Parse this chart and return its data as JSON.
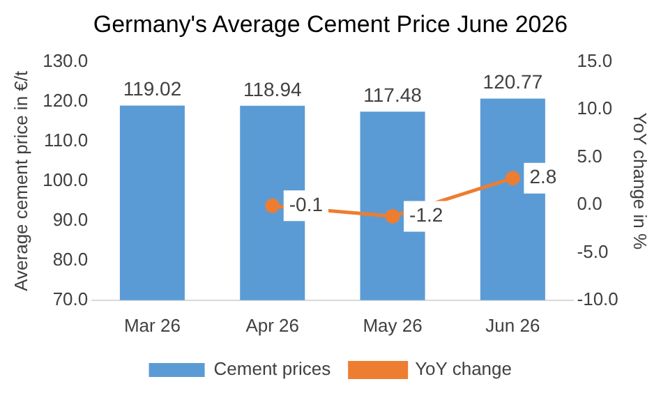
{
  "chart_data": {
    "type": "bar",
    "title": "Germany's Average Cement Price June 2026",
    "ylabel": "Average cement price in €/t",
    "y2label": "YoY change in %",
    "categories": [
      "Mar 26",
      "Apr 26",
      "May 26",
      "Jun 26"
    ],
    "series": [
      {
        "name": "Cement prices",
        "color": "#5b9bd5",
        "values": [
          119.02,
          118.94,
          117.48,
          120.77
        ]
      },
      {
        "name": "YoY change",
        "type": "line",
        "axis": "y2",
        "color": "#ed7d31",
        "values": [
          null,
          -0.1,
          -1.2,
          2.8
        ]
      }
    ],
    "ylim": [
      70,
      130
    ],
    "yticks": [
      {
        "value": 70,
        "label": "70.0"
      },
      {
        "value": 80,
        "label": "80.0"
      },
      {
        "value": 90,
        "label": "90.0"
      },
      {
        "value": 100,
        "label": "100.0"
      },
      {
        "value": 110,
        "label": "110.0"
      },
      {
        "value": 120,
        "label": "120.0"
      },
      {
        "value": 130,
        "label": "130.0"
      }
    ],
    "y2lim": [
      -10,
      15
    ],
    "y2ticks": [
      {
        "value": -10,
        "label": "-10.0"
      },
      {
        "value": -5,
        "label": "-5.0"
      },
      {
        "value": 0,
        "label": "0.0"
      },
      {
        "value": 5,
        "label": "5.0"
      },
      {
        "value": 10,
        "label": "10.0"
      },
      {
        "value": 15,
        "label": "15.0"
      }
    ],
    "data_labels": true,
    "legend": "bottom",
    "marker": "circle",
    "grid": false
  }
}
